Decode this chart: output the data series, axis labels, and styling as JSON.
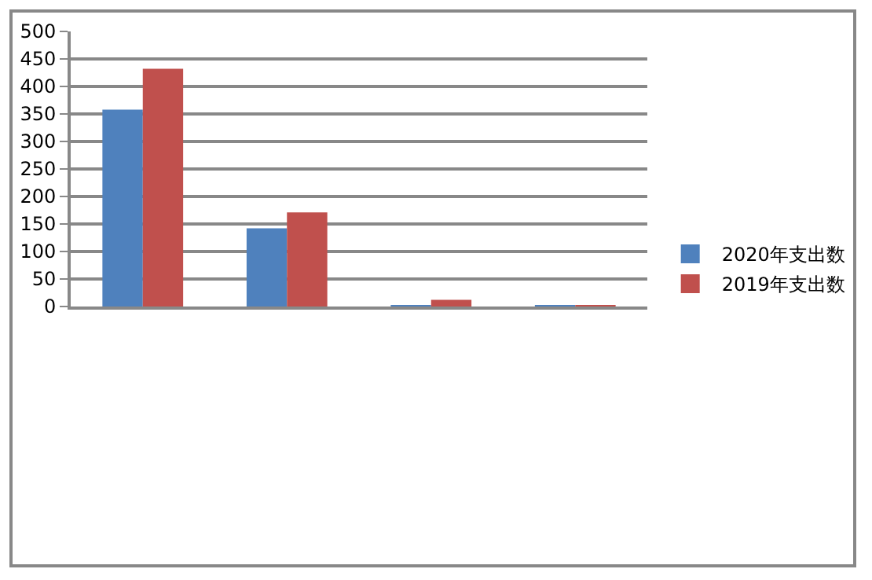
{
  "chart_data": {
    "type": "bar",
    "categories": [
      null,
      null,
      null,
      null
    ],
    "series": [
      {
        "name": "2020年支出数",
        "color": "#4f81bd",
        "values": [
          358,
          142,
          3,
          3
        ]
      },
      {
        "name": "2019年支出数",
        "color": "#c0504d",
        "values": [
          432,
          171,
          12,
          3
        ]
      }
    ],
    "ylim": [
      0,
      500
    ],
    "yticks": [
      0,
      50,
      100,
      150,
      200,
      250,
      300,
      350,
      400,
      450,
      500
    ],
    "grid": "y",
    "legend": "right"
  }
}
